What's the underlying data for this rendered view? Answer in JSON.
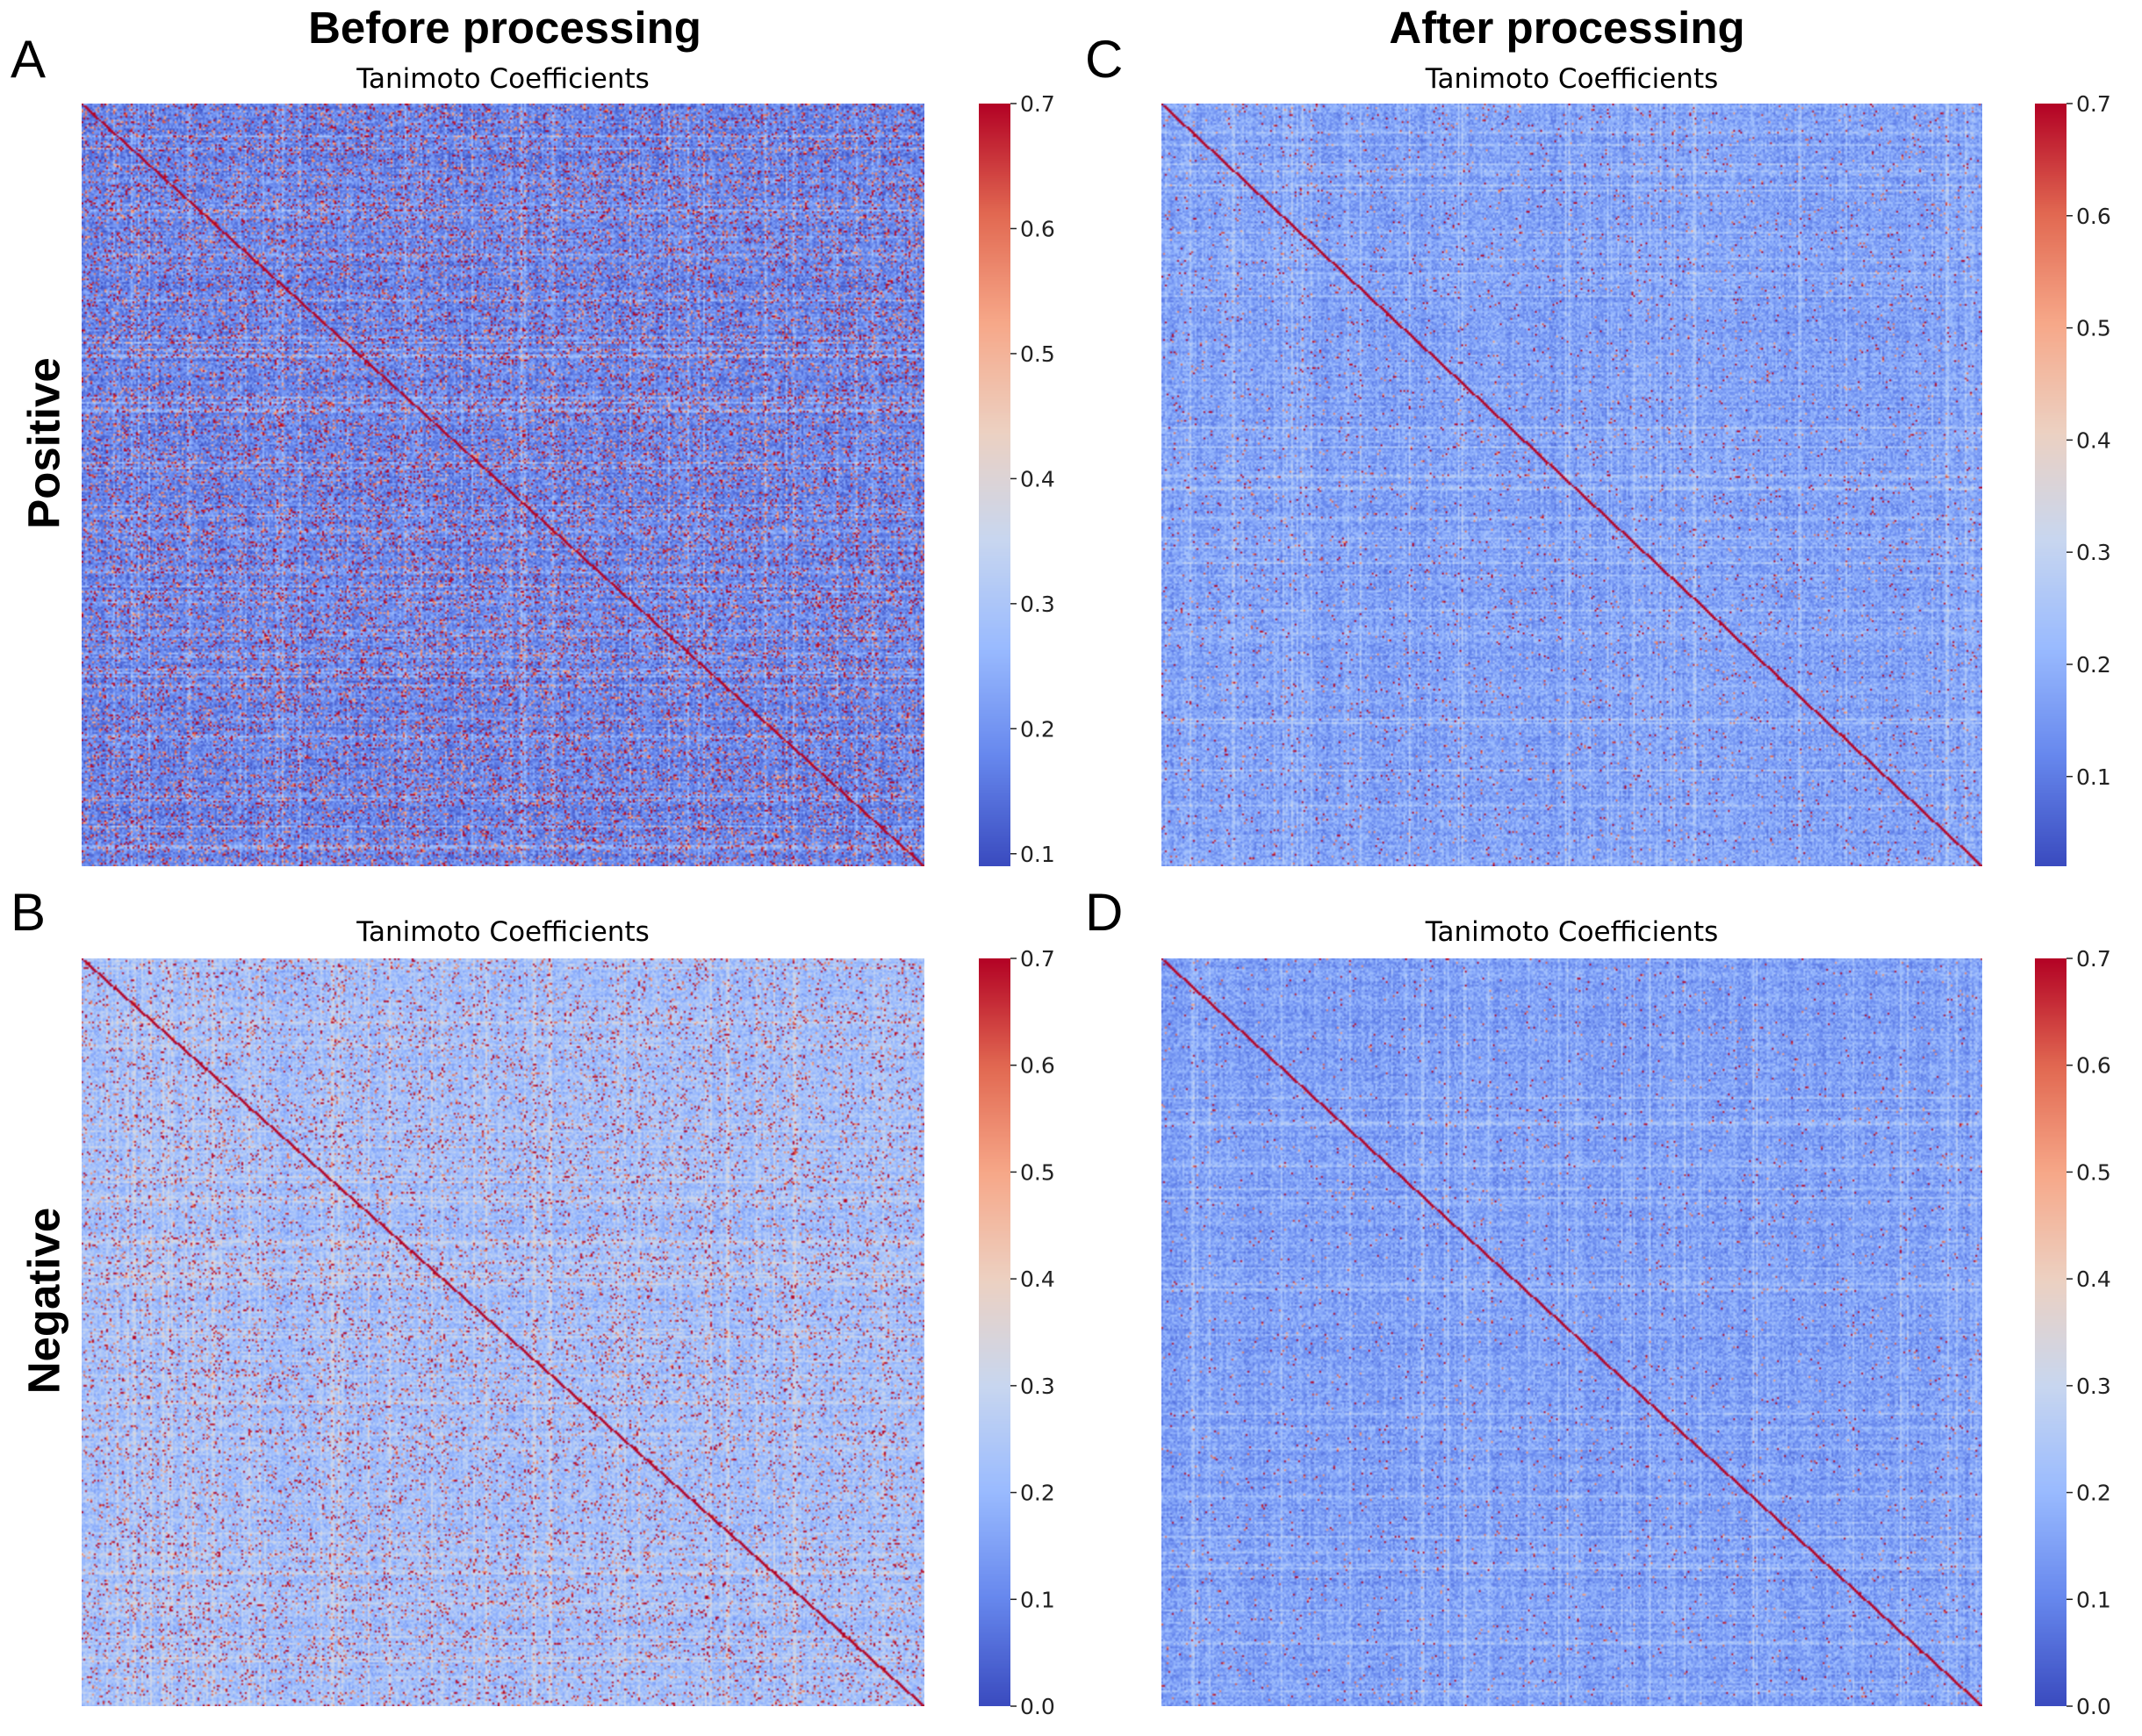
{
  "columns": {
    "left_title": "Before processing",
    "right_title": "After processing"
  },
  "rows": {
    "top_label": "Positive",
    "bottom_label": "Negative"
  },
  "colormap": {
    "name": "coolwarm",
    "stops": [
      "#3b4cc0",
      "#6788ee",
      "#9abbff",
      "#c9d7f0",
      "#edd1c2",
      "#f7a889",
      "#e26952",
      "#b40426"
    ]
  },
  "chart_data": [
    {
      "panel": "A",
      "type": "heatmap",
      "title": "Tanimoto Coefficients",
      "row_group": "Positive",
      "column_group": "Before processing",
      "vmin": 0.09,
      "vmax": 0.7,
      "colorbar_ticks": [
        0.1,
        0.2,
        0.3,
        0.4,
        0.5,
        0.6,
        0.7
      ],
      "diagonal_value": 0.7,
      "typical_value": 0.18,
      "hotspot_density": 0.22,
      "seed": 11,
      "xlabel": "",
      "ylabel": ""
    },
    {
      "panel": "B",
      "type": "heatmap",
      "title": "Tanimoto Coefficients",
      "row_group": "Negative",
      "column_group": "Before processing",
      "vmin": 0.0,
      "vmax": 0.7,
      "colorbar_ticks": [
        0.0,
        0.1,
        0.2,
        0.3,
        0.4,
        0.5,
        0.6,
        0.7
      ],
      "diagonal_value": 0.7,
      "typical_value": 0.22,
      "hotspot_density": 0.13,
      "seed": 23,
      "xlabel": "",
      "ylabel": ""
    },
    {
      "panel": "C",
      "type": "heatmap",
      "title": "Tanimoto Coefficients",
      "row_group": "Positive",
      "column_group": "After processing",
      "vmin": 0.02,
      "vmax": 0.7,
      "colorbar_ticks": [
        0.1,
        0.2,
        0.3,
        0.4,
        0.5,
        0.6,
        0.7
      ],
      "diagonal_value": 0.7,
      "typical_value": 0.17,
      "hotspot_density": 0.04,
      "seed": 37,
      "xlabel": "",
      "ylabel": ""
    },
    {
      "panel": "D",
      "type": "heatmap",
      "title": "Tanimoto Coefficients",
      "row_group": "Negative",
      "column_group": "After processing",
      "vmin": 0.0,
      "vmax": 0.7,
      "colorbar_ticks": [
        0.0,
        0.1,
        0.2,
        0.3,
        0.4,
        0.5,
        0.6,
        0.7
      ],
      "diagonal_value": 0.7,
      "typical_value": 0.15,
      "hotspot_density": 0.025,
      "seed": 53,
      "xlabel": "",
      "ylabel": ""
    }
  ]
}
